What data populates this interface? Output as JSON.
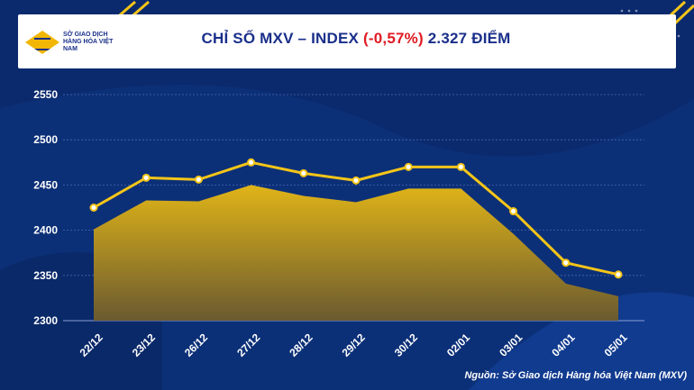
{
  "header": {
    "logo_text": "SỞ GIAO DỊCH HÀNG HÓA VIỆT NAM",
    "title_main": "CHỈ SỐ MXV – INDEX",
    "title_change": "(-0,57%)",
    "title_value": "2.327 ĐIỂM"
  },
  "source": "Nguồn: Sở Giao dịch Hàng hóa Việt Nam (MXV)",
  "colors": {
    "background": "#0b2a6e",
    "line": "#f5c518",
    "area_top": "#e0b418",
    "area_bottom": "#6a5a30",
    "negative": "#e01b22"
  },
  "chart_data": {
    "type": "area",
    "categories": [
      "22/12",
      "23/12",
      "26/12",
      "27/12",
      "28/12",
      "29/12",
      "30/12",
      "02/01",
      "03/01",
      "04/01",
      "05/01"
    ],
    "series": [
      {
        "values": [
          2425,
          2458,
          2456,
          2475,
          2463,
          2455,
          2470,
          2470,
          2421,
          2364,
          2351
        ]
      },
      {
        "values": [
          2401,
          2433,
          2432,
          2450,
          2438,
          2431,
          2446,
          2446,
          2396,
          2341,
          2327
        ]
      }
    ],
    "yticks": [
      2300,
      2350,
      2400,
      2450,
      2500,
      2550
    ],
    "ylim": [
      2300,
      2550
    ],
    "grid": true
  }
}
